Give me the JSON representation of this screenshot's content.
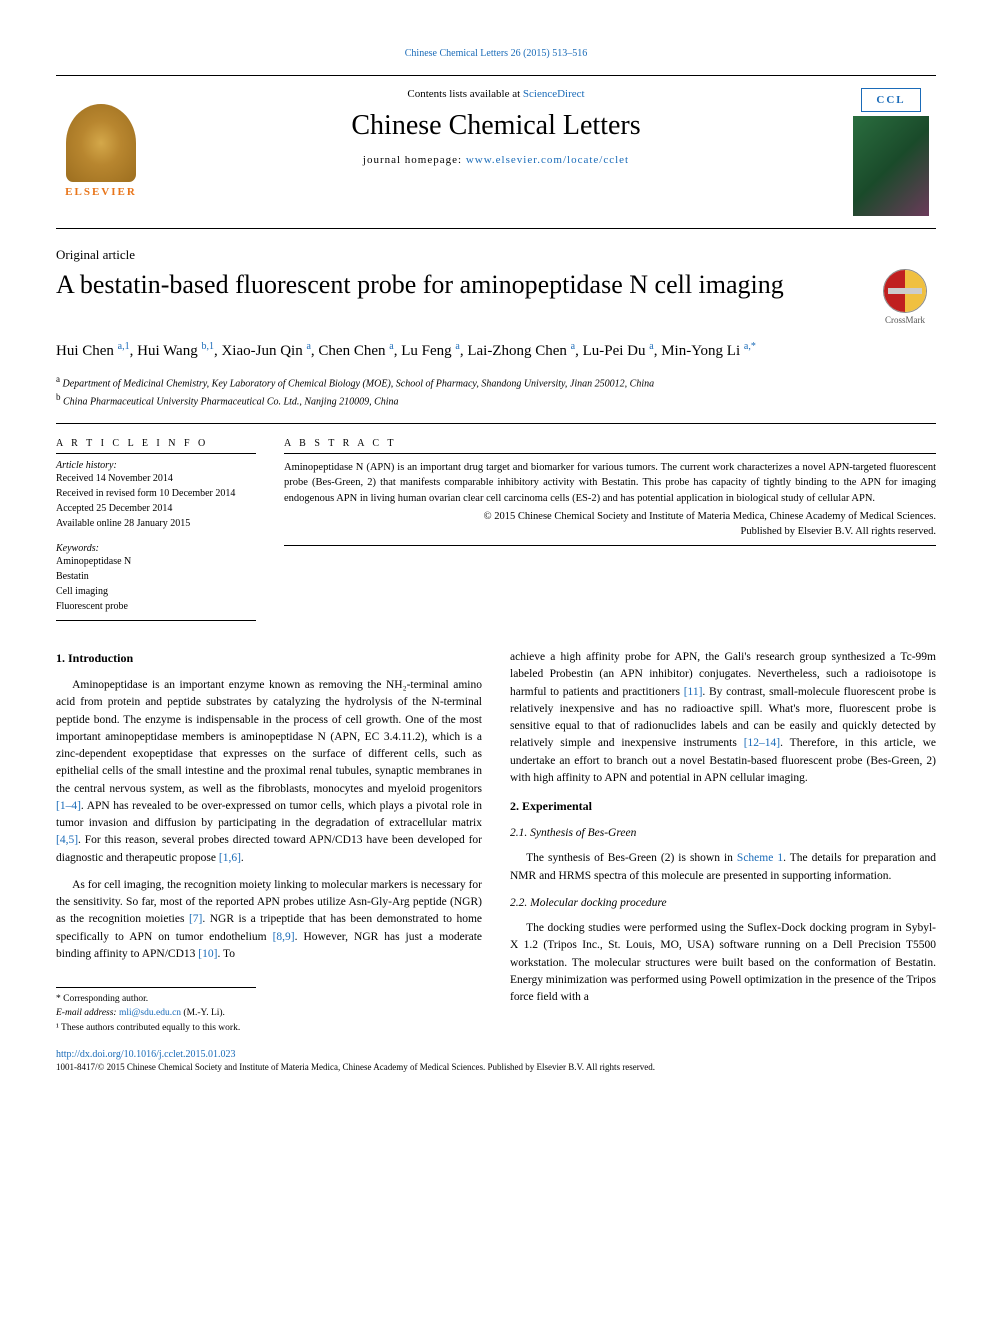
{
  "top_link": "Chinese Chemical Letters 26 (2015) 513–516",
  "header": {
    "contents_prefix": "Contents lists available at ",
    "contents_link": "ScienceDirect",
    "journal_title": "Chinese Chemical Letters",
    "homepage_prefix": "journal homepage: ",
    "homepage_url": "www.elsevier.com/locate/cclet",
    "elsevier": "ELSEVIER",
    "ccl_badge": "CCL"
  },
  "article_type": "Original article",
  "article_title": "A bestatin-based fluorescent probe for aminopeptidase N cell imaging",
  "crossmark_label": "CrossMark",
  "authors_html": "Hui Chen <sup>a,1</sup>, Hui Wang <sup>b,1</sup>, Xiao-Jun Qin <sup>a</sup>, Chen Chen <sup>a</sup>, Lu Feng <sup>a</sup>, Lai-Zhong Chen <sup>a</sup>, Lu-Pei Du <sup>a</sup>, Min-Yong Li <sup>a,*</sup>",
  "affiliations": {
    "a": "Department of Medicinal Chemistry, Key Laboratory of Chemical Biology (MOE), School of Pharmacy, Shandong University, Jinan 250012, China",
    "b": "China Pharmaceutical University Pharmaceutical Co. Ltd., Nanjing 210009, China"
  },
  "info": {
    "heading": "A R T I C L E   I N F O",
    "history_label": "Article history:",
    "history": [
      "Received 14 November 2014",
      "Received in revised form 10 December 2014",
      "Accepted 25 December 2014",
      "Available online 28 January 2015"
    ],
    "kw_label": "Keywords:",
    "keywords": [
      "Aminopeptidase N",
      "Bestatin",
      "Cell imaging",
      "Fluorescent probe"
    ]
  },
  "abstract": {
    "heading": "A B S T R A C T",
    "text": "Aminopeptidase N (APN) is an important drug target and biomarker for various tumors. The current work characterizes a novel APN-targeted fluorescent probe (Bes-Green, 2) that manifests comparable inhibitory activity with Bestatin. This probe has capacity of tightly binding to the APN for imaging endogenous APN in living human ovarian clear cell carcinoma cells (ES-2) and has potential application in biological study of cellular APN.",
    "copyright1": "© 2015 Chinese Chemical Society and Institute of Materia Medica, Chinese Academy of Medical Sciences.",
    "copyright2": "Published by Elsevier B.V. All rights reserved."
  },
  "sections": {
    "intro_heading": "1. Introduction",
    "intro_p1": "Aminopeptidase is an important enzyme known as removing the NH₂-terminal amino acid from protein and peptide substrates by catalyzing the hydrolysis of the N-terminal peptide bond. The enzyme is indispensable in the process of cell growth. One of the most important aminopeptidase members is aminopeptidase N (APN, EC 3.4.11.2), which is a zinc-dependent exopeptidase that expresses on the surface of different cells, such as epithelial cells of the small intestine and the proximal renal tubules, synaptic membranes in the central nervous system, as well as the fibroblasts, monocytes and myeloid progenitors ",
    "intro_p1_cite1": "[1–4]",
    "intro_p1_b": ". APN has revealed to be over-expressed on tumor cells, which plays a pivotal role in tumor invasion and diffusion by participating in the degradation of extracellular matrix ",
    "intro_p1_cite2": "[4,5]",
    "intro_p1_c": ". For this reason, several probes directed toward APN/CD13 have been developed for diagnostic and therapeutic propose ",
    "intro_p1_cite3": "[1,6]",
    "intro_p1_d": ".",
    "intro_p2": "As for cell imaging, the recognition moiety linking to molecular markers is necessary for the sensitivity. So far, most of the reported APN probes utilize Asn-Gly-Arg peptide (NGR) as the recognition moieties ",
    "intro_p2_cite1": "[7]",
    "intro_p2_b": ". NGR is a tripeptide that has been demonstrated to home specifically to APN on tumor endothelium ",
    "intro_p2_cite2": "[8,9]",
    "intro_p2_c": ". However, NGR has just a moderate binding affinity to APN/CD13 ",
    "intro_p2_cite3": "[10]",
    "intro_p2_d": ". To ",
    "intro_p2_cont": "achieve a high affinity probe for APN, the Gali's research group synthesized a Tc-99m labeled Probestin (an APN inhibitor) conjugates. Nevertheless, such a radioisotope is harmful to patients and practitioners ",
    "intro_p2_cont_cite1": "[11]",
    "intro_p2_cont_b": ". By contrast, small-molecule fluorescent probe is relatively inexpensive and has no radioactive spill. What's more, fluorescent probe is sensitive equal to that of radionuclides labels and can be easily and quickly detected by relatively simple and inexpensive instruments ",
    "intro_p2_cont_cite2": "[12–14]",
    "intro_p2_cont_c": ". Therefore, in this article, we undertake an effort to branch out a novel Bestatin-based fluorescent probe (Bes-Green, 2) with high affinity to APN and potential in APN cellular imaging.",
    "exp_heading": "2. Experimental",
    "exp_21_heading": "2.1. Synthesis of Bes-Green",
    "exp_21_text_a": "The synthesis of Bes-Green (2) is shown in ",
    "exp_21_scheme": "Scheme 1",
    "exp_21_text_b": ". The details for preparation and NMR and HRMS spectra of this molecule are presented in supporting information.",
    "exp_22_heading": "2.2. Molecular docking procedure",
    "exp_22_text": "The docking studies were performed using the Suflex-Dock docking program in Sybyl-X 1.2 (Tripos Inc., St. Louis, MO, USA) software running on a Dell Precision T5500 workstation. The molecular structures were built based on the conformation of Bestatin. Energy minimization was performed using Powell optimization in the presence of the Tripos force field with a"
  },
  "footnotes": {
    "corr": "* Corresponding author.",
    "email_label": "E-mail address: ",
    "email": "mli@sdu.edu.cn",
    "email_suffix": " (M.-Y. Li).",
    "equal": "¹ These authors contributed equally to this work."
  },
  "doi": "http://dx.doi.org/10.1016/j.cclet.2015.01.023",
  "bottom_copy": "1001-8417/© 2015 Chinese Chemical Society and Institute of Materia Medica, Chinese Academy of Medical Sciences. Published by Elsevier B.V. All rights reserved.",
  "colors": {
    "link": "#1a6bb8",
    "elsevier_orange": "#e8751a"
  }
}
